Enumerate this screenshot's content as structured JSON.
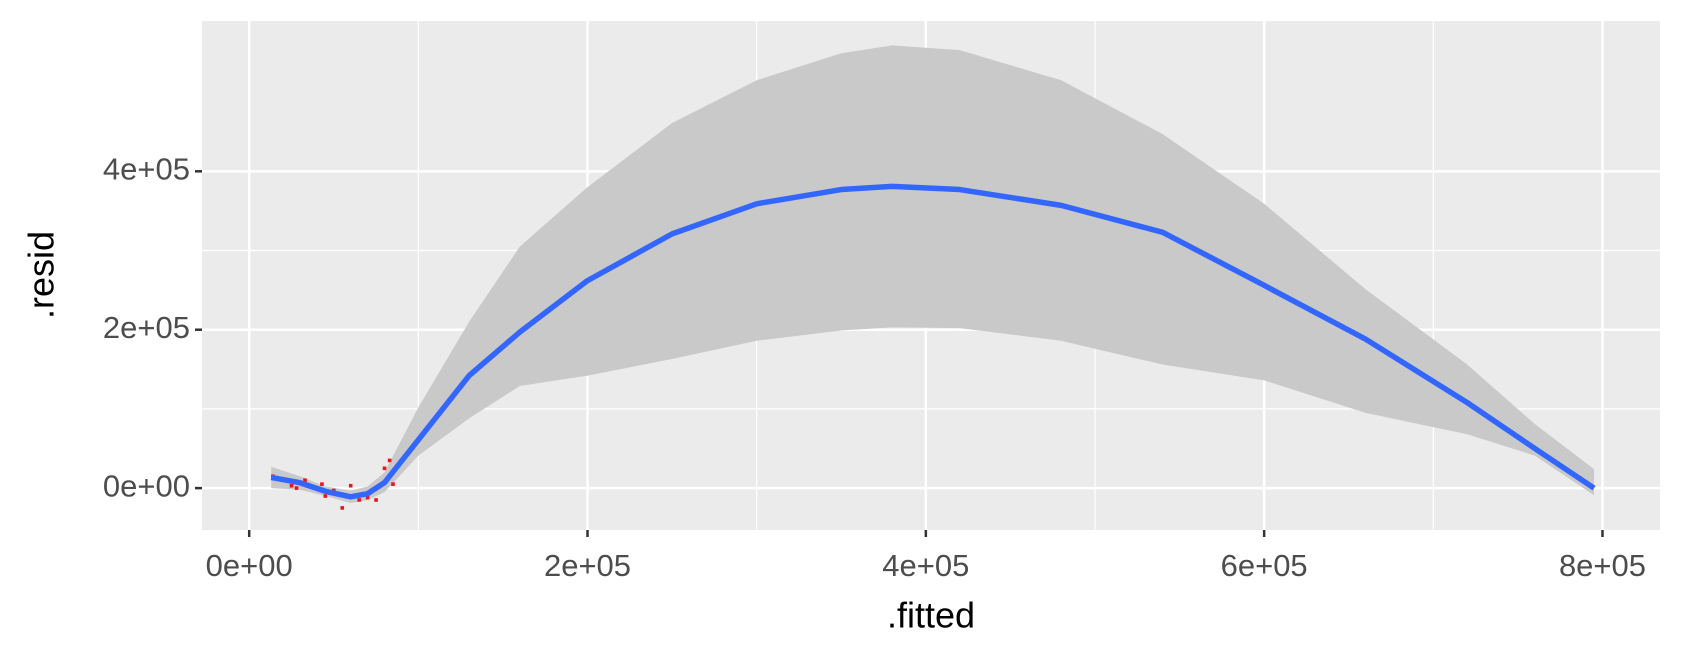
{
  "chart_data": {
    "type": "scatter",
    "x_label": ".fitted",
    "y_label": ".resid",
    "xlim": [
      -27900,
      834000
    ],
    "ylim": [
      -52900,
      589800
    ],
    "xticks": [
      {
        "value": 0,
        "label": "0e+00"
      },
      {
        "value": 200000,
        "label": "2e+05"
      },
      {
        "value": 400000,
        "label": "4e+05"
      },
      {
        "value": 600000,
        "label": "6e+05"
      },
      {
        "value": 800000,
        "label": "8e+05"
      }
    ],
    "yticks": [
      {
        "value": 0,
        "label": "0e+00"
      },
      {
        "value": 200000,
        "label": "2e+05"
      },
      {
        "value": 400000,
        "label": "4e+05"
      }
    ],
    "grid": true,
    "points": {
      "color": "#e8151b",
      "x": [
        14000,
        20000,
        25000,
        28000,
        33000,
        43000,
        45000,
        50000,
        55000,
        60000,
        65000,
        70000,
        75000,
        80000,
        83000,
        85000
      ],
      "y": [
        15000,
        10000,
        3000,
        0,
        10000,
        5000,
        -10000,
        -3000,
        -25000,
        3000,
        -15000,
        -12000,
        -15000,
        25000,
        35000,
        5000
      ]
    },
    "smooth": {
      "color": "#3366ff",
      "band_color": "#c9c9c9",
      "x": [
        13000,
        30000,
        45000,
        60000,
        70000,
        80000,
        100000,
        130000,
        160000,
        200000,
        250000,
        300000,
        350000,
        380000,
        420000,
        480000,
        540000,
        600000,
        660000,
        720000,
        760000,
        795000
      ],
      "y": [
        13500,
        6800,
        -4000,
        -11000,
        -7000,
        7000,
        61000,
        142000,
        197000,
        262000,
        321000,
        359000,
        377000,
        381000,
        377000,
        357000,
        323000,
        256000,
        188000,
        108000,
        50000,
        0
      ],
      "upper": [
        27000,
        15000,
        2000,
        -3000,
        2000,
        20000,
        102000,
        210000,
        305000,
        380000,
        461000,
        515000,
        549000,
        559000,
        553000,
        515000,
        447000,
        359000,
        251000,
        156000,
        81000,
        24000
      ],
      "lower": [
        0,
        -2000,
        -10000,
        -19000,
        -15000,
        -5000,
        41000,
        88000,
        129000,
        142000,
        163000,
        186000,
        199000,
        203000,
        202000,
        186000,
        156000,
        136000,
        95000,
        68000,
        41000,
        -9000
      ]
    }
  }
}
